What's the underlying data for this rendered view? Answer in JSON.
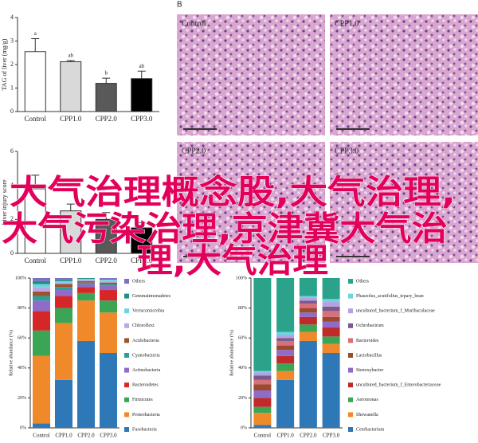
{
  "chart_data": [
    {
      "type": "bar",
      "ylabel": "TAG of liver (mg/g)",
      "categories": [
        "Control",
        "CPP1.0",
        "CPP2.0",
        "CPP3.0"
      ],
      "values": [
        2.55,
        2.12,
        1.2,
        1.4
      ],
      "errors": [
        0.55,
        0.05,
        0.22,
        0.32
      ],
      "annotations": [
        "a",
        "ab",
        "b",
        "ab"
      ],
      "colors": [
        "#ffffff",
        "#d9d9d9",
        "#595959",
        "#000000"
      ],
      "ylim": [
        0,
        4
      ],
      "yticks": [
        0,
        1,
        2,
        3,
        4
      ]
    },
    {
      "type": "bar",
      "ylabel": "Liver injury score",
      "categories": [
        "Control",
        "CPP1.0",
        "CPP2.0",
        "CPP3.0"
      ],
      "values": [
        3.8,
        2.5,
        2.0,
        1.5
      ],
      "errors": [
        0.8,
        0.4,
        0.4,
        0.3
      ],
      "colors": [
        "#ffffff",
        "#d9d9d9",
        "#595959",
        "#000000"
      ],
      "ylim": [
        0,
        6
      ],
      "yticks": [
        0,
        2,
        4,
        6
      ]
    },
    {
      "type": "stacked_bar",
      "ylabel": "Relative abundance (%)",
      "categories": [
        "Control",
        "CPP1.0",
        "CPP2.0",
        "CPP3.0"
      ],
      "ylim": [
        0,
        100
      ],
      "yticks": [
        {
          "value": 0,
          "label": "0%"
        },
        {
          "value": 20,
          "label": "20%"
        },
        {
          "value": 40,
          "label": "40%"
        },
        {
          "value": 60,
          "label": "60%"
        },
        {
          "value": 80,
          "label": "80%"
        },
        {
          "value": 100,
          "label": "100%"
        }
      ],
      "series": [
        {
          "name": "Others",
          "color": "#7c6fc6",
          "values": [
            2,
            1,
            0,
            0.5
          ]
        },
        {
          "name": "Gemmatimonadetes",
          "color": "#1f8f80",
          "values": [
            2,
            1,
            0.5,
            0.5
          ]
        },
        {
          "name": "Verrucomicrobia",
          "color": "#6fd4e0",
          "values": [
            2,
            1,
            0.5,
            1
          ]
        },
        {
          "name": "Chloroflexi",
          "color": "#b9a8e6",
          "values": [
            3,
            1,
            1,
            1
          ]
        },
        {
          "name": "Acidobacteria",
          "color": "#a0522d",
          "values": [
            3,
            2,
            1,
            1
          ]
        },
        {
          "name": "Cyanobacteria",
          "color": "#2aa198",
          "values": [
            3,
            2,
            1,
            1
          ]
        },
        {
          "name": "Actinobacteria",
          "color": "#8e6cc8",
          "values": [
            7,
            4,
            2,
            3
          ]
        },
        {
          "name": "Bacteroidetes",
          "color": "#d62728",
          "values": [
            13,
            8,
            4,
            7
          ]
        },
        {
          "name": "Firmicutes",
          "color": "#3aa655",
          "values": [
            17,
            10,
            5,
            8
          ]
        },
        {
          "name": "Proteobacteria",
          "color": "#f0892a",
          "values": [
            45,
            38,
            27,
            27
          ]
        },
        {
          "name": "Fusobacteria",
          "color": "#2f78b7",
          "values": [
            3,
            32,
            58,
            50
          ]
        }
      ]
    },
    {
      "type": "stacked_bar",
      "ylabel": "Relative abundance (%)",
      "categories": [
        "Control",
        "CPP1.0",
        "CPP2.0",
        "CPP3.0"
      ],
      "ylim": [
        0,
        100
      ],
      "yticks": [
        {
          "value": 0,
          "label": "0%"
        },
        {
          "value": 20,
          "label": "20%"
        },
        {
          "value": 40,
          "label": "40%"
        },
        {
          "value": 60,
          "label": "60%"
        },
        {
          "value": 80,
          "label": "80%"
        },
        {
          "value": 100,
          "label": "100%"
        }
      ],
      "series": [
        {
          "name": "Others",
          "color": "#2aa38a",
          "values": [
            62,
            36,
            12,
            14
          ]
        },
        {
          "name": "Phaseolus_acutifolius_tepary_bean",
          "color": "#6fd4e0",
          "values": [
            1,
            2,
            1,
            2
          ]
        },
        {
          "name": "uncultured_bacterium_f_Muribaculaceae",
          "color": "#b6a1df",
          "values": [
            2,
            2,
            2,
            3
          ]
        },
        {
          "name": "Ochrobactrum",
          "color": "#7a5a8c",
          "values": [
            3,
            2,
            2,
            3
          ]
        },
        {
          "name": "Bacteroides",
          "color": "#d6707a",
          "values": [
            3,
            3,
            3,
            4
          ]
        },
        {
          "name": "Lactobacillus",
          "color": "#9c4a2e",
          "values": [
            4,
            3,
            3,
            3
          ]
        },
        {
          "name": "Stenoxybacter",
          "color": "#8e6cc8",
          "values": [
            5,
            4,
            3,
            4
          ]
        },
        {
          "name": "uncultured_bacterium_f_Enterobacteriaceae",
          "color": "#c02a2a",
          "values": [
            6,
            5,
            5,
            6
          ]
        },
        {
          "name": "Aeromonas",
          "color": "#3aa655",
          "values": [
            4,
            5,
            5,
            5
          ]
        },
        {
          "name": "Shewanella",
          "color": "#f0892a",
          "values": [
            8,
            6,
            6,
            6
          ]
        },
        {
          "name": "Cetobacterium",
          "color": "#2f78b7",
          "values": [
            2,
            32,
            58,
            50
          ]
        }
      ]
    }
  ],
  "panel_b": {
    "label": "B",
    "panels": [
      "Control",
      "CPP1.0",
      "CPP2.0",
      "CPP3.0"
    ]
  },
  "overlay_text": [
    "大气治理概念股,大气治理,",
    "大气污染治理,京津冀大气治",
    "理,大气治理"
  ]
}
